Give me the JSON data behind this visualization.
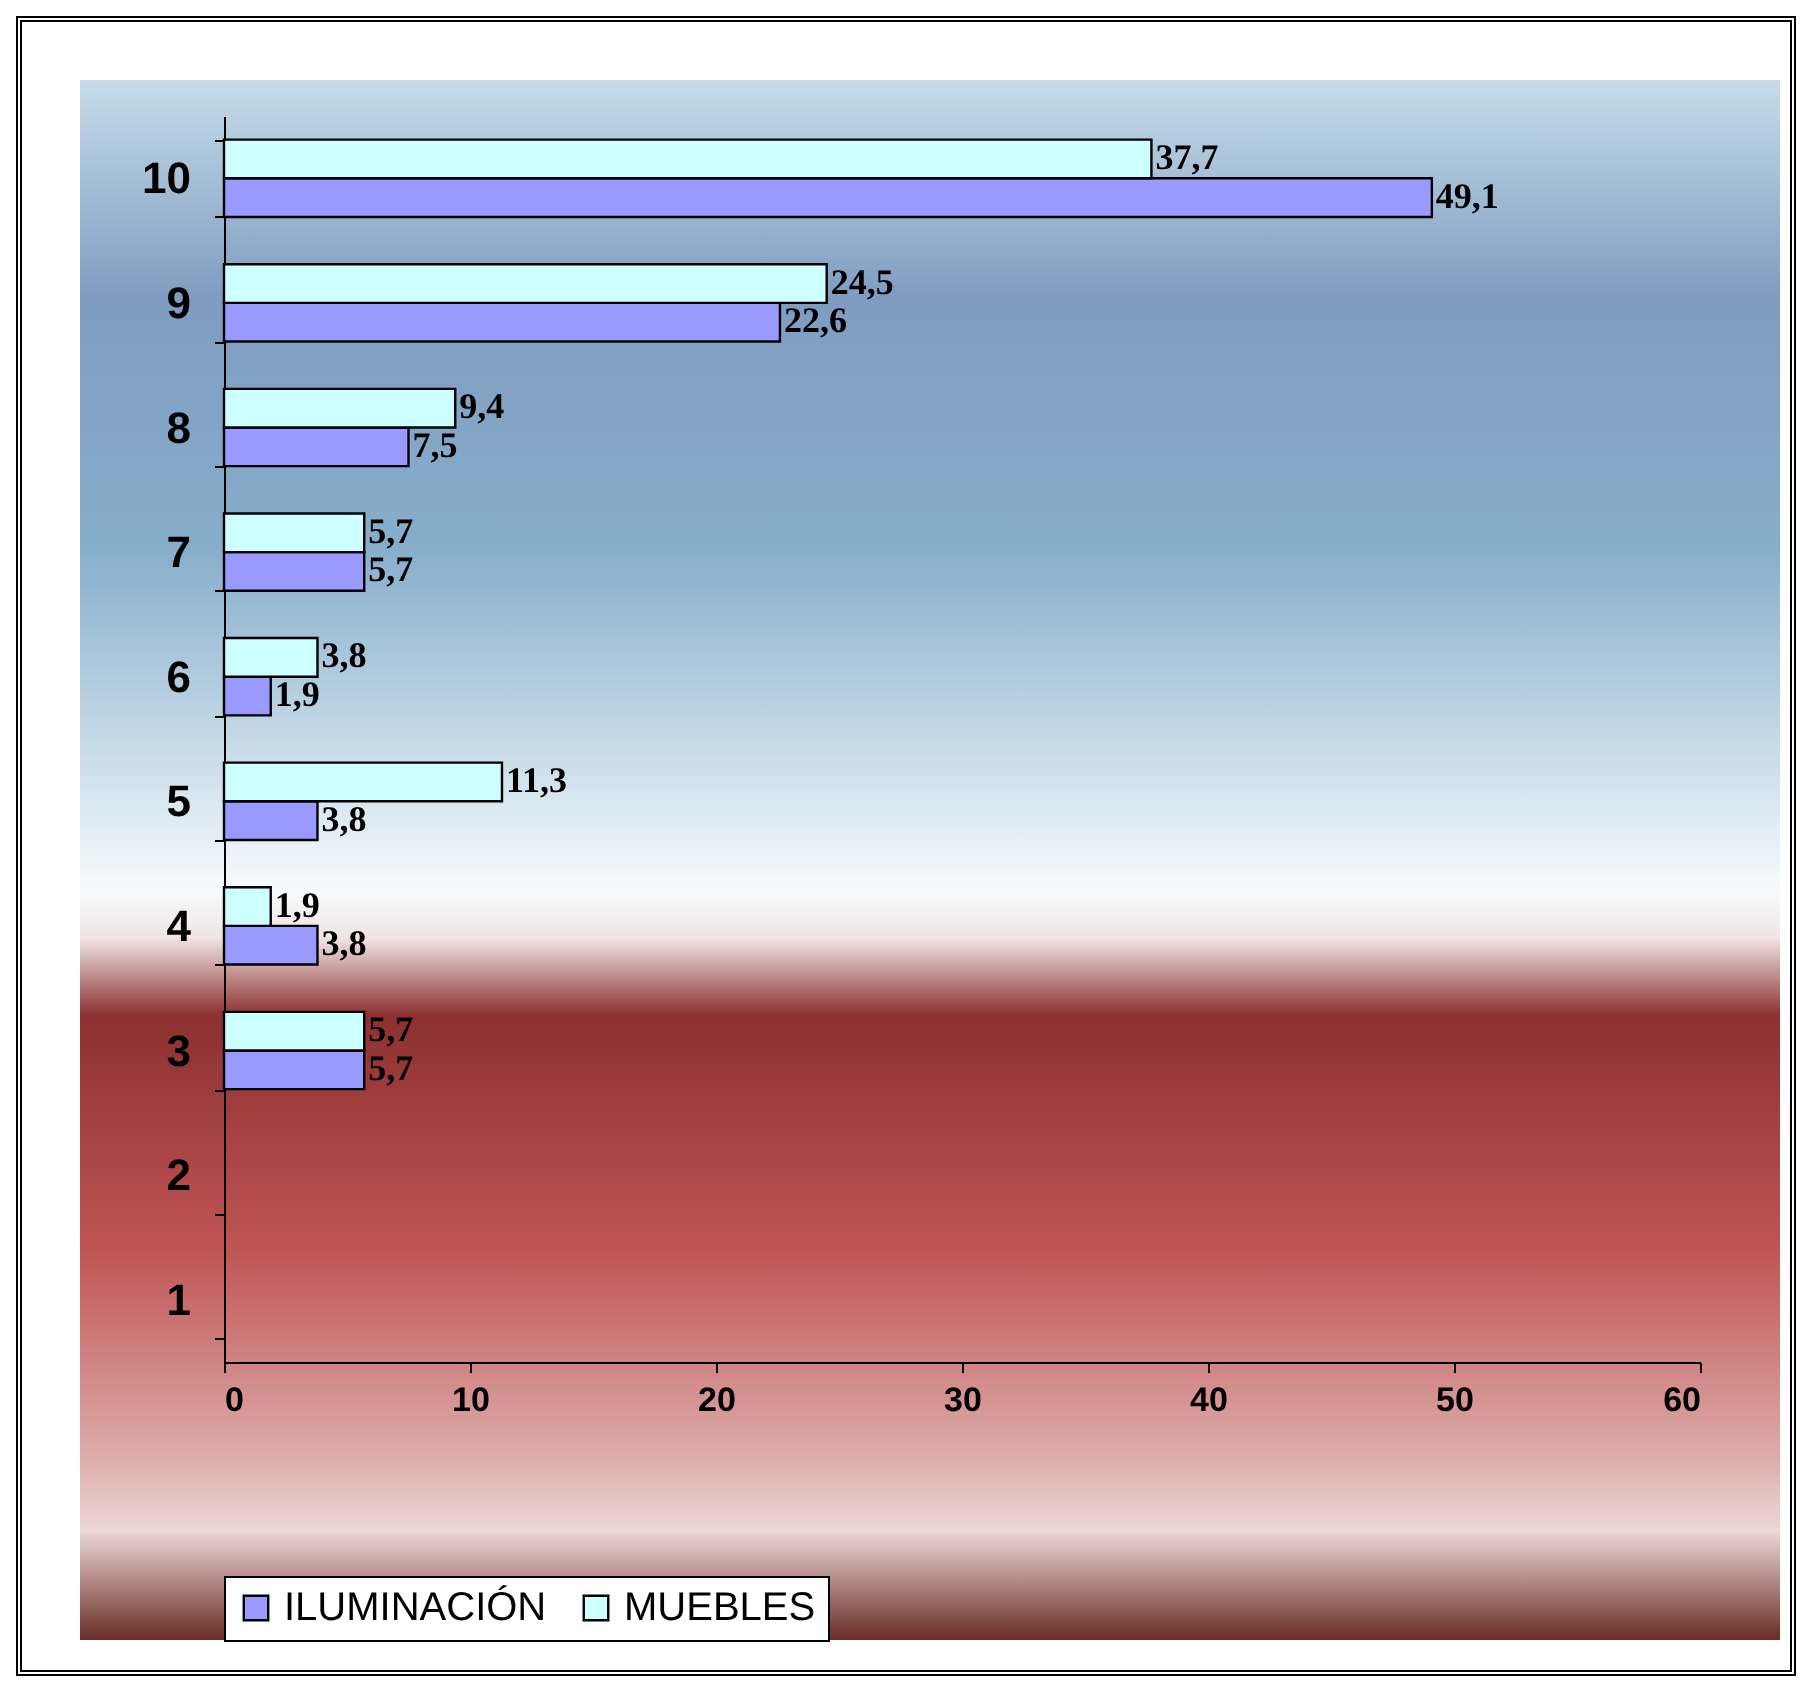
{
  "chart_data": {
    "type": "bar",
    "orientation": "horizontal",
    "categories": [
      "10",
      "9",
      "8",
      "7",
      "6",
      "5",
      "4",
      "3",
      "2",
      "1"
    ],
    "series": [
      {
        "name": "ILUMINACIÓN",
        "color": "#9999ff",
        "values": [
          49.1,
          22.6,
          7.5,
          5.7,
          1.9,
          3.8,
          3.8,
          5.7,
          null,
          null
        ],
        "value_labels": [
          "49,1",
          "22,6",
          "7,5",
          "5,7",
          "1,9",
          "3,8",
          "3,8",
          "5,7",
          null,
          null
        ]
      },
      {
        "name": "MUEBLES",
        "color": "#ccffff",
        "values": [
          37.7,
          24.5,
          9.4,
          5.7,
          3.8,
          11.3,
          1.9,
          5.7,
          null,
          null
        ],
        "value_labels": [
          "37,7",
          "24,5",
          "9,4",
          "5,7",
          "3,8",
          "11,3",
          "1,9",
          "5,7",
          null,
          null
        ]
      }
    ],
    "xlim": [
      0,
      60
    ],
    "xticks": [
      0,
      10,
      20,
      30,
      40,
      50,
      60
    ],
    "grid": false,
    "legend": "bottom"
  }
}
